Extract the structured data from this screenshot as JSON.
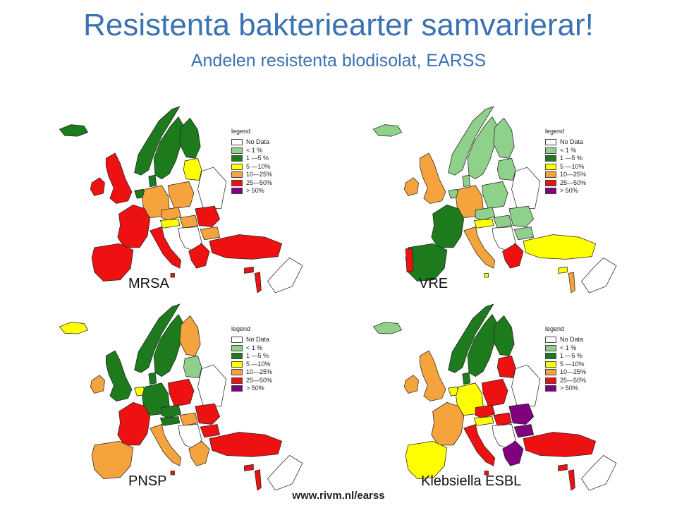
{
  "header": {
    "title": "Resistenta bakteriearter samvarierar!",
    "subtitle": "Andelen resistenta blodisolat, EARSS"
  },
  "legend": {
    "title": "legend",
    "items": [
      {
        "label": "No Data",
        "color": "#ffffff"
      },
      {
        "label": "< 1 %",
        "color": "#8fd08a"
      },
      {
        "label": "1 —5 %",
        "color": "#1d7a1d"
      },
      {
        "label": "5 —10%",
        "color": "#ffff00"
      },
      {
        "label": "10—25%",
        "color": "#f5a33c"
      },
      {
        "label": "25—50%",
        "color": "#ee1111"
      },
      {
        "label": "> 50%",
        "color": "#800080"
      }
    ]
  },
  "maps": [
    {
      "label": "MRSA",
      "regions": {
        "iceland": "#1d7a1d",
        "ireland": "#ee1111",
        "uk": "#ee1111",
        "norway": "#1d7a1d",
        "sweden": "#1d7a1d",
        "finland": "#1d7a1d",
        "baltic": "#ffff00",
        "denmark": "#1d7a1d",
        "netherlands": "#1d7a1d",
        "germany": "#f5a33c",
        "poland": "#f5a33c",
        "czechia": "#f5a33c",
        "france": "#ee1111",
        "iberia": "#ee1111",
        "italy": "#ee1111",
        "austria": "#ffff00",
        "hungary": "#f5a33c",
        "balkans": "#ffffff",
        "romania": "#ee1111",
        "bulgaria": "#f5a33c",
        "greece": "#ee1111",
        "turkey": "#ee1111",
        "cyprus": "#ee1111",
        "malta": "#ee1111",
        "israel": "#ee1111"
      }
    },
    {
      "label": "VRE",
      "regions": {
        "iceland": "#8fd08a",
        "ireland": "#f5a33c",
        "uk": "#f5a33c",
        "norway": "#8fd08a",
        "sweden": "#8fd08a",
        "finland": "#8fd08a",
        "baltic": "#8fd08a",
        "denmark": "#8fd08a",
        "netherlands": "#8fd08a",
        "germany": "#f5a33c",
        "poland": "#8fd08a",
        "czechia": "#8fd08a",
        "france": "#1d7a1d",
        "iberia": "#1d7a1d",
        "italy": "#f5a33c",
        "austria": "#ffff00",
        "hungary": "#8fd08a",
        "balkans": "#ffffff",
        "romania": "#8fd08a",
        "bulgaria": "#8fd08a",
        "greece": "#ee1111",
        "turkey": "#ffff00",
        "cyprus": "#ffff00",
        "malta": "#ffff00",
        "israel": "#f5a33c",
        "portugal": "#ee1111"
      }
    },
    {
      "label": "PNSP",
      "regions": {
        "iceland": "#ffff00",
        "ireland": "#f5a33c",
        "uk": "#1d7a1d",
        "norway": "#1d7a1d",
        "sweden": "#1d7a1d",
        "finland": "#f5a33c",
        "baltic": "#8fd08a",
        "denmark": "#1d7a1d",
        "netherlands": "#ffff00",
        "germany": "#1d7a1d",
        "poland": "#ee1111",
        "czechia": "#1d7a1d",
        "france": "#ee1111",
        "iberia": "#f5a33c",
        "italy": "#f5a33c",
        "austria": "#1d7a1d",
        "hungary": "#f5a33c",
        "balkans": "#ffffff",
        "romania": "#ee1111",
        "bulgaria": "#ee1111",
        "greece": "#f5a33c",
        "turkey": "#ee1111",
        "cyprus": "#ee1111",
        "malta": "#ee1111",
        "israel": "#ee1111"
      }
    },
    {
      "label": "Klebsiella ESBL",
      "regions": {
        "iceland": "#8fd08a",
        "ireland": "#f5a33c",
        "uk": "#f5a33c",
        "norway": "#1d7a1d",
        "sweden": "#1d7a1d",
        "finland": "#1d7a1d",
        "baltic": "#ee1111",
        "denmark": "#1d7a1d",
        "netherlands": "#ffff00",
        "germany": "#ffff00",
        "poland": "#ee1111",
        "czechia": "#ee1111",
        "france": "#f5a33c",
        "iberia": "#ffff00",
        "italy": "#ee1111",
        "austria": "#ffff00",
        "hungary": "#ee1111",
        "balkans": "#ffffff",
        "romania": "#800080",
        "bulgaria": "#800080",
        "greece": "#800080",
        "turkey": "#ee1111",
        "cyprus": "#ee1111",
        "malta": "#ee1111",
        "israel": "#ee1111"
      }
    }
  ],
  "footer": {
    "url": "www.rivm.nl/earss"
  }
}
